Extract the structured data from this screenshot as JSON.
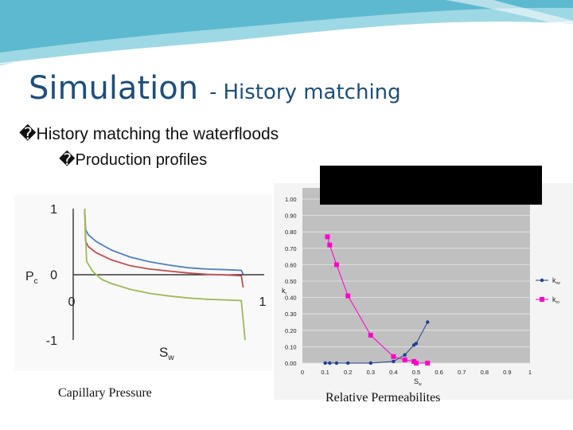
{
  "slide": {
    "title": "Simulation",
    "title_dash": "-",
    "subtitle": "History matching",
    "bullets": [
      {
        "mark": "�",
        "text": "History matching the waterfloods"
      },
      {
        "mark": "�",
        "text": "Production profiles"
      }
    ],
    "captions": {
      "left": "Capillary Pressure",
      "right": "Relative Permeabilites"
    },
    "colors": {
      "title": "#1f4e79",
      "banner": "#4fb8cf"
    }
  },
  "chart_data": [
    {
      "type": "line",
      "title": "",
      "xlabel": "Sw",
      "ylabel": "Pc",
      "xlim": [
        0,
        1
      ],
      "ylim": [
        -1,
        1
      ],
      "x_ticks": [
        "0",
        "1"
      ],
      "y_ticks": [
        "1",
        "0",
        "-1"
      ],
      "grid": false,
      "series": [
        {
          "color": "#4f81bd",
          "x": [
            0.06,
            0.065,
            0.08,
            0.12,
            0.2,
            0.3,
            0.4,
            0.5,
            0.6,
            0.7,
            0.8,
            0.88,
            0.89
          ],
          "y": [
            1.0,
            0.68,
            0.6,
            0.5,
            0.37,
            0.26,
            0.19,
            0.14,
            0.1,
            0.08,
            0.07,
            0.06,
            0.0
          ]
        },
        {
          "color": "#c0504d",
          "x": [
            0.06,
            0.065,
            0.08,
            0.12,
            0.2,
            0.3,
            0.4,
            0.5,
            0.6,
            0.7,
            0.8,
            0.88,
            0.89
          ],
          "y": [
            1.0,
            0.5,
            0.42,
            0.33,
            0.22,
            0.13,
            0.08,
            0.05,
            0.02,
            0.0,
            -0.01,
            -0.02,
            -0.2
          ]
        },
        {
          "color": "#9bbb59",
          "x": [
            0.06,
            0.07,
            0.1,
            0.15,
            0.2,
            0.3,
            0.4,
            0.5,
            0.6,
            0.7,
            0.8,
            0.88,
            0.89,
            0.9
          ],
          "y": [
            1.0,
            0.2,
            0.05,
            -0.08,
            -0.14,
            -0.23,
            -0.29,
            -0.33,
            -0.36,
            -0.38,
            -0.39,
            -0.4,
            -0.7,
            -1.0
          ]
        }
      ]
    },
    {
      "type": "line",
      "title": "",
      "xlabel": "Sw",
      "ylabel": "kr",
      "xlim": [
        0,
        1
      ],
      "ylim": [
        0,
        1
      ],
      "x_ticks": [
        "0",
        "0.1",
        "0.2",
        "0.3",
        "0.4",
        "0.5",
        "0.6",
        "0.7",
        "0.8",
        "0.9",
        "1"
      ],
      "y_ticks": [
        "0.00",
        "0.10",
        "0.20",
        "0.30",
        "0.40",
        "0.50",
        "0.60",
        "0.70",
        "0.80",
        "0.90",
        "1.00"
      ],
      "grid": true,
      "legend": "right",
      "series": [
        {
          "name": "krw",
          "color": "#1f3f8f",
          "marker": "circle",
          "x": [
            0.1,
            0.12,
            0.15,
            0.2,
            0.3,
            0.4,
            0.45,
            0.49,
            0.5,
            0.55
          ],
          "y": [
            0.0,
            0.0,
            0.0,
            0.0,
            0.0,
            0.01,
            0.05,
            0.11,
            0.12,
            0.25
          ]
        },
        {
          "name": "kro",
          "color": "#ff00cc",
          "marker": "square",
          "x": [
            0.11,
            0.12,
            0.15,
            0.2,
            0.3,
            0.4,
            0.45,
            0.49,
            0.5,
            0.55
          ],
          "y": [
            0.77,
            0.72,
            0.6,
            0.41,
            0.17,
            0.04,
            0.02,
            0.01,
            0.0,
            0.0
          ]
        }
      ]
    }
  ]
}
